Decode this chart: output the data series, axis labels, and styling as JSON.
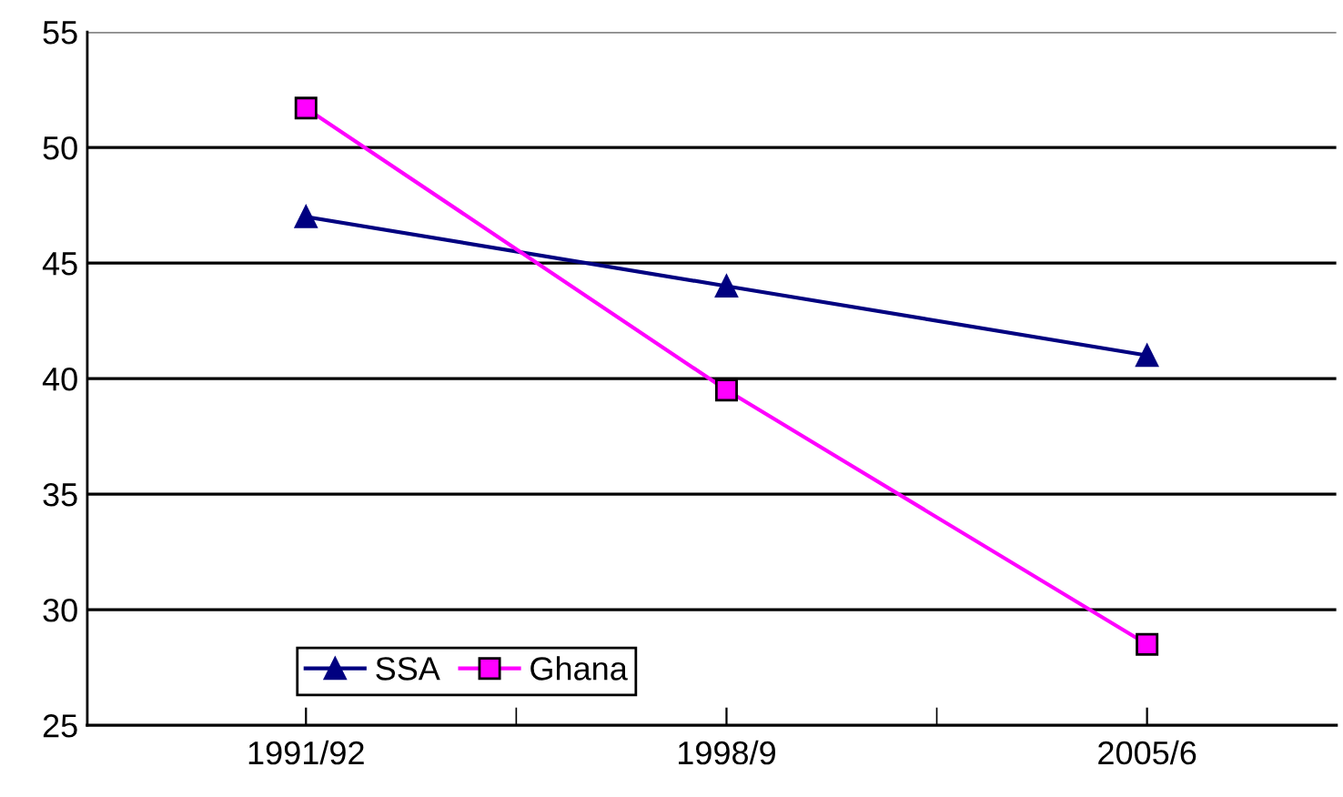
{
  "chart_data": {
    "type": "line",
    "categories": [
      "1991/92",
      "1998/9",
      "2005/6"
    ],
    "series": [
      {
        "name": "SSA",
        "color": "#000080",
        "marker": "triangle",
        "values": [
          47,
          44,
          41
        ]
      },
      {
        "name": "Ghana",
        "color": "#ff00ff",
        "marker": "square",
        "values": [
          51.7,
          39.5,
          28.5
        ]
      }
    ],
    "ylim": [
      25,
      55
    ],
    "yticks": [
      25,
      30,
      35,
      40,
      45,
      50,
      55
    ],
    "grid": "y",
    "legend": "bottom left"
  }
}
